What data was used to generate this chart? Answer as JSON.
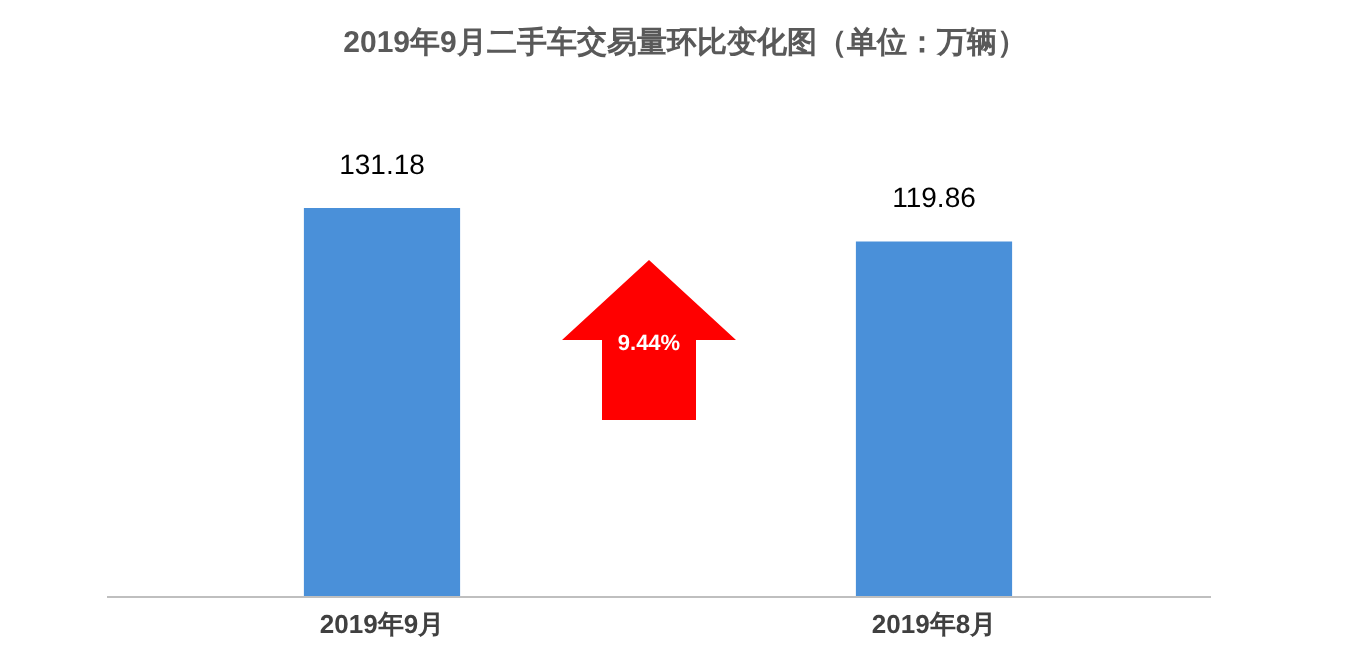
{
  "chart_data": {
    "type": "bar",
    "title": "2019年9月二手车交易量环比变化图（单位：万辆）",
    "categories": [
      "2019年9月",
      "2019年8月"
    ],
    "values": [
      131.18,
      119.86
    ],
    "color": "#4a90d9",
    "data_labels": true,
    "annotations": [
      "9.44%"
    ]
  }
}
